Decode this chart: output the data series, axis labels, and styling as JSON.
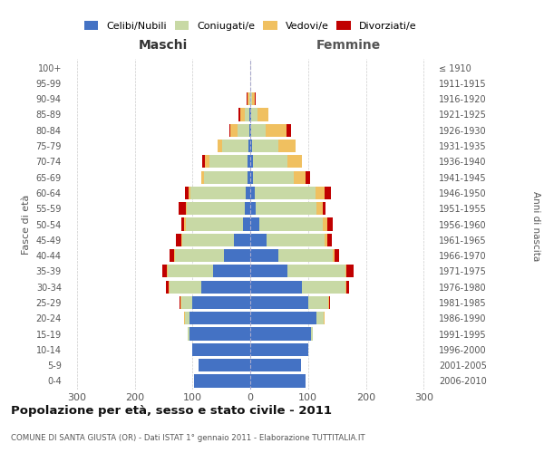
{
  "age_groups": [
    "0-4",
    "5-9",
    "10-14",
    "15-19",
    "20-24",
    "25-29",
    "30-34",
    "35-39",
    "40-44",
    "45-49",
    "50-54",
    "55-59",
    "60-64",
    "65-69",
    "70-74",
    "75-79",
    "80-84",
    "85-89",
    "90-94",
    "95-99",
    "100+"
  ],
  "birth_years": [
    "2006-2010",
    "2001-2005",
    "1996-2000",
    "1991-1995",
    "1986-1990",
    "1981-1985",
    "1976-1980",
    "1971-1975",
    "1966-1970",
    "1961-1965",
    "1956-1960",
    "1951-1955",
    "1946-1950",
    "1941-1945",
    "1936-1940",
    "1931-1935",
    "1926-1930",
    "1921-1925",
    "1916-1920",
    "1911-1915",
    "≤ 1910"
  ],
  "male_celibi": [
    97,
    90,
    100,
    105,
    105,
    100,
    85,
    65,
    45,
    28,
    12,
    10,
    8,
    5,
    5,
    3,
    2,
    2,
    0,
    0,
    0
  ],
  "male_coniugati": [
    0,
    0,
    1,
    3,
    8,
    20,
    55,
    78,
    85,
    90,
    100,
    100,
    95,
    75,
    65,
    45,
    20,
    8,
    2,
    0,
    0
  ],
  "male_vedovi": [
    0,
    0,
    0,
    0,
    1,
    1,
    1,
    1,
    1,
    2,
    2,
    2,
    3,
    5,
    8,
    8,
    12,
    8,
    2,
    0,
    0
  ],
  "male_divorziati": [
    0,
    0,
    0,
    0,
    1,
    2,
    5,
    8,
    8,
    8,
    5,
    12,
    7,
    0,
    5,
    0,
    2,
    2,
    2,
    0,
    0
  ],
  "female_celibi": [
    95,
    88,
    100,
    105,
    115,
    100,
    90,
    65,
    48,
    28,
    15,
    10,
    8,
    5,
    5,
    3,
    2,
    2,
    0,
    0,
    0
  ],
  "female_coniugati": [
    0,
    0,
    1,
    3,
    12,
    35,
    75,
    100,
    95,
    100,
    110,
    105,
    105,
    70,
    60,
    45,
    25,
    10,
    3,
    0,
    0
  ],
  "female_vedovi": [
    0,
    0,
    0,
    0,
    1,
    1,
    1,
    2,
    3,
    5,
    8,
    10,
    15,
    20,
    25,
    30,
    35,
    20,
    5,
    0,
    0
  ],
  "female_divorziati": [
    0,
    0,
    0,
    0,
    1,
    2,
    5,
    12,
    8,
    8,
    10,
    5,
    12,
    8,
    0,
    0,
    8,
    0,
    2,
    0,
    0
  ],
  "color_celibi": "#4472C4",
  "color_coniugati": "#c8d9a5",
  "color_vedovi": "#f0c060",
  "color_divorziati": "#c00000",
  "title": "Popolazione per età, sesso e stato civile - 2011",
  "subtitle": "COMUNE DI SANTA GIUSTA (OR) - Dati ISTAT 1° gennaio 2011 - Elaborazione TUTTITALIA.IT",
  "xlabel_left": "Maschi",
  "xlabel_right": "Femmine",
  "ylabel_left": "Fasce di età",
  "ylabel_right": "Anni di nascita",
  "xlim": 320,
  "legend_labels": [
    "Celibi/Nubili",
    "Coniugati/e",
    "Vedovi/e",
    "Divorziati/e"
  ],
  "bg_color": "#ffffff",
  "grid_color": "#cccccc"
}
